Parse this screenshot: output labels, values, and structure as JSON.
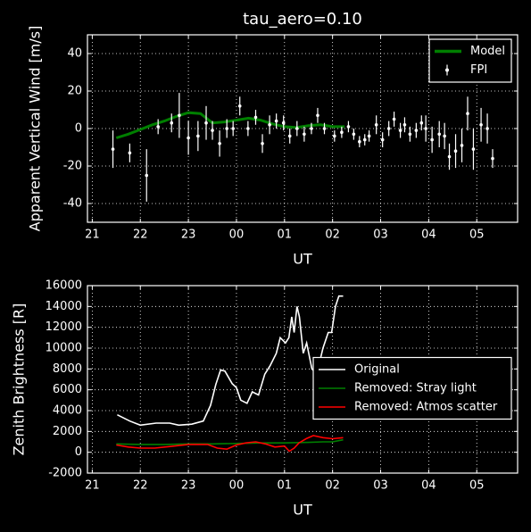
{
  "chart_data": [
    {
      "type": "line",
      "title": "tau_aero=0.10",
      "ylabel": "Apparent Vertical Wind [m/s]",
      "xlabel": "UT",
      "xlim": [
        20.9,
        29.85
      ],
      "ylim": [
        -50,
        50
      ],
      "xticks": [
        21,
        22,
        23,
        {
          "value": 24,
          "label": "00"
        },
        {
          "value": 25,
          "label": "01"
        },
        {
          "value": 26,
          "label": "02"
        },
        {
          "value": 27,
          "label": "03"
        },
        {
          "value": 28,
          "label": "04"
        },
        {
          "value": 29,
          "label": "05"
        }
      ],
      "yticks": [
        -40,
        -20,
        0,
        20,
        40
      ],
      "grid": true,
      "legend": "upper right",
      "series": [
        {
          "name": "Model",
          "color": "#007f00",
          "style": "line",
          "x": [
            21.5,
            21.75,
            22,
            22.25,
            22.5,
            22.75,
            23,
            23.25,
            23.5,
            23.75,
            24,
            24.25,
            24.5,
            24.75,
            25,
            25.25,
            25.5,
            25.75,
            26,
            26.25
          ],
          "values": [
            -5,
            -3,
            -0.5,
            2,
            4,
            6.5,
            8.5,
            8,
            3,
            3.5,
            4.5,
            5.5,
            4.5,
            2.5,
            1,
            0.5,
            1.5,
            2,
            1,
            1
          ]
        },
        {
          "name": "FPI",
          "color": "#ffffff",
          "style": "errorbar",
          "x": [
            21.43,
            21.78,
            22.13,
            22.37,
            22.65,
            22.81,
            23.0,
            23.2,
            23.37,
            23.5,
            23.65,
            23.8,
            23.93,
            24.07,
            24.24,
            24.4,
            24.54,
            24.69,
            24.83,
            24.98,
            25.11,
            25.26,
            25.41,
            25.56,
            25.69,
            25.83,
            26.04,
            26.19,
            26.33,
            26.44,
            26.56,
            26.67,
            26.76,
            26.91,
            27.04,
            27.17,
            27.28,
            27.41,
            27.5,
            27.61,
            27.74,
            27.85,
            27.94,
            28.07,
            28.22,
            28.33,
            28.43,
            28.56,
            28.69,
            28.81,
            28.93,
            29.09,
            29.22,
            29.33
          ],
          "values": [
            -11,
            -13,
            -25,
            1,
            3,
            7,
            -5,
            -4,
            3,
            -1,
            -8,
            0,
            0,
            12,
            0,
            6,
            -8,
            2,
            4,
            3,
            -4,
            0,
            -3,
            0,
            7,
            0,
            -4,
            -2,
            1,
            -3,
            -7,
            -6,
            -4,
            2,
            -6,
            0,
            5,
            -1,
            2,
            -3,
            -1,
            3,
            0,
            -6,
            -3,
            -4,
            -15,
            -12,
            -9,
            8,
            -11,
            2,
            0,
            -16
          ],
          "errors": [
            10,
            5,
            14,
            4,
            5,
            12,
            9,
            8,
            9,
            5,
            7,
            5,
            4,
            5,
            4,
            4,
            5,
            5,
            4,
            4,
            4,
            4,
            4,
            3,
            4,
            3,
            3,
            3,
            3,
            3,
            3,
            3,
            3,
            5,
            4,
            4,
            4,
            4,
            4,
            4,
            4,
            4,
            7,
            7,
            7,
            7,
            7,
            9,
            9,
            9,
            11,
            9,
            8,
            5
          ]
        }
      ]
    },
    {
      "type": "line",
      "ylabel": "Zenith Brightness [R]",
      "xlabel": "UT",
      "xlim": [
        20.9,
        29.85
      ],
      "ylim": [
        -2000,
        16000
      ],
      "xticks": [
        21,
        22,
        23,
        {
          "value": 24,
          "label": "00"
        },
        {
          "value": 25,
          "label": "01"
        },
        {
          "value": 26,
          "label": "02"
        },
        {
          "value": 27,
          "label": "03"
        },
        {
          "value": 28,
          "label": "04"
        },
        {
          "value": 29,
          "label": "05"
        }
      ],
      "yticks": [
        -2000,
        0,
        2000,
        4000,
        6000,
        8000,
        10000,
        12000,
        14000,
        16000
      ],
      "grid": true,
      "legend": "center right",
      "series": [
        {
          "name": "Original",
          "color": "#ffffff",
          "style": "line",
          "x": [
            21.52,
            21.78,
            22.0,
            22.33,
            22.61,
            22.8,
            23.07,
            23.31,
            23.46,
            23.57,
            23.67,
            23.76,
            23.91,
            24.0,
            24.09,
            24.22,
            24.33,
            24.46,
            24.59,
            24.7,
            24.83,
            24.91,
            25.02,
            25.09,
            25.15,
            25.2,
            25.26,
            25.31,
            25.39,
            25.46,
            25.57,
            25.67,
            25.8,
            25.91,
            25.98,
            26.06,
            26.13,
            26.22
          ],
          "values": [
            3600,
            3000,
            2600,
            2800,
            2800,
            2600,
            2700,
            3000,
            4500,
            6500,
            7900,
            7800,
            6600,
            6200,
            5000,
            4700,
            5800,
            5500,
            7500,
            8300,
            9500,
            11000,
            10500,
            11000,
            13000,
            11500,
            14000,
            13000,
            9500,
            10500,
            8000,
            7500,
            10000,
            11500,
            11500,
            14000,
            15000,
            15000
          ]
        },
        {
          "name": "Removed: Stray light",
          "color": "#007f00",
          "style": "line",
          "x": [
            21.5,
            22,
            22.5,
            23,
            23.5,
            24,
            24.5,
            25,
            25.5,
            25.8,
            26,
            26.22
          ],
          "values": [
            800,
            750,
            750,
            800,
            800,
            850,
            900,
            900,
            950,
            1000,
            1000,
            1200
          ]
        },
        {
          "name": "Removed: Atmos scatter",
          "color": "#ff0000",
          "style": "line",
          "x": [
            21.5,
            21.75,
            22,
            22.3,
            22.6,
            23,
            23.4,
            23.6,
            23.8,
            24,
            24.2,
            24.4,
            24.6,
            24.8,
            25,
            25.1,
            25.2,
            25.3,
            25.45,
            25.6,
            25.8,
            26,
            26.22
          ],
          "values": [
            700,
            500,
            400,
            400,
            550,
            750,
            750,
            400,
            300,
            700,
            900,
            1000,
            800,
            500,
            600,
            100,
            400,
            900,
            1300,
            1600,
            1400,
            1300,
            1400
          ]
        }
      ]
    }
  ]
}
